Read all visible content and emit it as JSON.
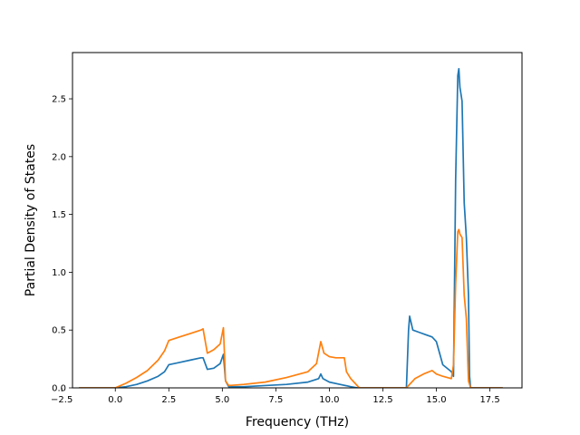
{
  "chart_data": {
    "type": "line",
    "title": "",
    "xlabel": "Frequency (THz)",
    "ylabel": "Partial Density of States",
    "xlim": [
      -2.0,
      19.0
    ],
    "ylim": [
      0.0,
      2.9
    ],
    "xticks": [
      -2.5,
      0.0,
      2.5,
      5.0,
      7.5,
      10.0,
      12.5,
      15.0,
      17.5
    ],
    "xtick_labels": [
      "−2.5",
      "0.0",
      "2.5",
      "5.0",
      "7.5",
      "10.0",
      "12.5",
      "15.0",
      "17.5"
    ],
    "yticks": [
      0.0,
      0.5,
      1.0,
      1.5,
      2.0,
      2.5
    ],
    "ytick_labels": [
      "0.0",
      "0.5",
      "1.0",
      "1.5",
      "2.0",
      "2.5"
    ],
    "grid": false,
    "legend": "none",
    "series": [
      {
        "color": "#1f77b4",
        "x": [
          -1.7,
          0.0,
          0.5,
          1.0,
          1.5,
          2.0,
          2.3,
          2.5,
          3.0,
          3.5,
          4.0,
          4.1,
          4.3,
          4.6,
          4.9,
          5.05,
          5.15,
          5.3,
          6.0,
          7.0,
          8.0,
          9.0,
          9.5,
          9.6,
          9.7,
          10.0,
          10.5,
          11.0,
          11.3,
          12.0,
          13.0,
          13.6,
          13.7,
          13.75,
          13.9,
          14.2,
          14.5,
          14.8,
          15.0,
          15.3,
          15.7,
          15.8,
          15.9,
          16.0,
          16.05,
          16.1,
          16.2,
          16.3,
          16.4,
          16.5,
          16.55,
          16.6,
          17.0,
          18.1
        ],
        "y": [
          0.0,
          0.0,
          0.01,
          0.03,
          0.06,
          0.1,
          0.14,
          0.2,
          0.22,
          0.24,
          0.26,
          0.26,
          0.16,
          0.17,
          0.21,
          0.29,
          0.06,
          0.01,
          0.01,
          0.02,
          0.03,
          0.05,
          0.08,
          0.12,
          0.08,
          0.05,
          0.03,
          0.01,
          0.0,
          0.0,
          0.0,
          0.0,
          0.5,
          0.62,
          0.5,
          0.48,
          0.46,
          0.44,
          0.4,
          0.2,
          0.14,
          0.1,
          1.8,
          2.7,
          2.76,
          2.6,
          2.48,
          1.6,
          1.3,
          0.8,
          0.1,
          0.0,
          0.0,
          0.0
        ]
      },
      {
        "color": "#ff7f0e",
        "x": [
          -1.7,
          0.0,
          0.5,
          1.0,
          1.5,
          2.0,
          2.3,
          2.5,
          3.0,
          3.5,
          4.0,
          4.1,
          4.3,
          4.6,
          4.9,
          5.05,
          5.15,
          5.3,
          6.0,
          7.0,
          8.0,
          9.0,
          9.4,
          9.6,
          9.75,
          10.0,
          10.3,
          10.7,
          10.8,
          11.0,
          11.4,
          12.0,
          13.0,
          13.6,
          14.0,
          14.4,
          14.8,
          15.0,
          15.3,
          15.7,
          15.8,
          15.9,
          16.0,
          16.05,
          16.1,
          16.2,
          16.3,
          16.4,
          16.5,
          16.6,
          17.0,
          18.1
        ],
        "y": [
          0.0,
          0.0,
          0.04,
          0.09,
          0.15,
          0.24,
          0.32,
          0.41,
          0.44,
          0.47,
          0.5,
          0.51,
          0.3,
          0.33,
          0.38,
          0.52,
          0.06,
          0.02,
          0.03,
          0.05,
          0.09,
          0.14,
          0.21,
          0.4,
          0.3,
          0.27,
          0.26,
          0.26,
          0.14,
          0.08,
          0.0,
          0.0,
          0.0,
          0.0,
          0.08,
          0.12,
          0.15,
          0.12,
          0.1,
          0.08,
          0.2,
          0.9,
          1.35,
          1.37,
          1.33,
          1.3,
          0.8,
          0.6,
          0.06,
          0.0,
          0.0,
          0.0
        ]
      }
    ]
  }
}
